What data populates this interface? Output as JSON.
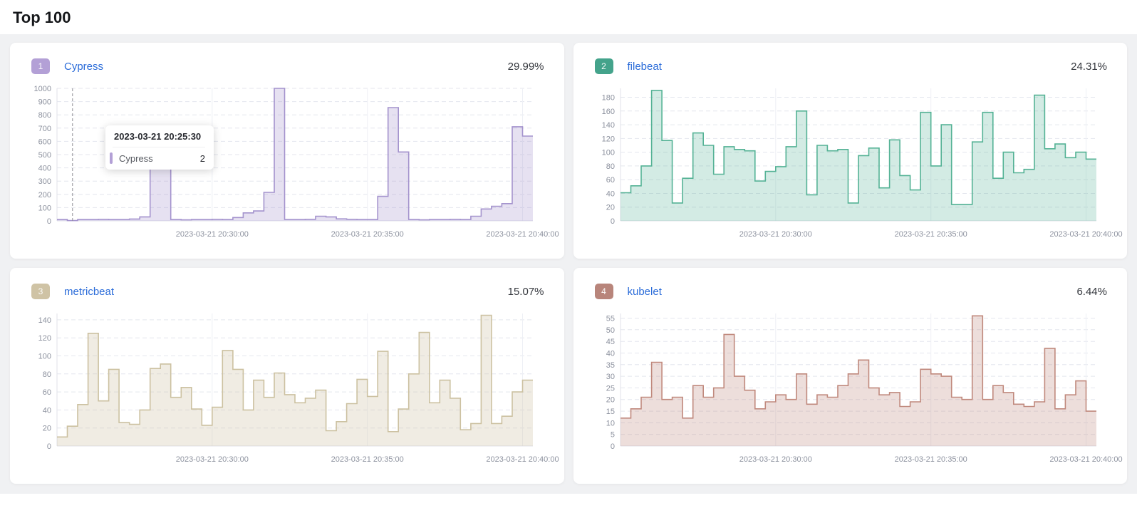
{
  "page": {
    "title": "Top 100"
  },
  "x_axis": [
    "2023-03-21 20:30:00",
    "2023-03-21 20:35:00",
    "2023-03-21 20:40:00"
  ],
  "chart_data": [
    {
      "type": "area",
      "rank": "1",
      "name": "Cypress",
      "percent": "29.99%",
      "colors": {
        "badge": "#b3a0d6",
        "line": "#a493cd",
        "fill": "rgba(164,147,205,0.28)"
      },
      "ylim": [
        0,
        1000
      ],
      "yticks": [
        0,
        100,
        200,
        300,
        400,
        500,
        600,
        700,
        800,
        900,
        1000
      ],
      "xticks": [
        "2023-03-21 20:30:00",
        "2023-03-21 20:35:00",
        "2023-03-21 20:40:00"
      ],
      "values": [
        10,
        2,
        10,
        10,
        12,
        10,
        10,
        14,
        30,
        490,
        600,
        10,
        8,
        10,
        10,
        12,
        10,
        25,
        60,
        75,
        215,
        1000,
        10,
        10,
        12,
        35,
        30,
        15,
        12,
        10,
        10,
        185,
        855,
        520,
        10,
        8,
        10,
        10,
        12,
        10,
        35,
        90,
        110,
        130,
        710,
        640
      ],
      "tooltip": {
        "title": "2023-03-21 20:25:30",
        "series": "Cypress",
        "value": "2"
      },
      "cursor_frac": 0.0326
    },
    {
      "type": "area",
      "rank": "2",
      "name": "filebeat",
      "percent": "24.31%",
      "colors": {
        "badge": "#44a38b",
        "line": "#54b295",
        "fill": "rgba(84,178,149,0.26)"
      },
      "ylim": [
        0,
        193
      ],
      "yticks": [
        0,
        20,
        40,
        60,
        80,
        100,
        120,
        140,
        160,
        180
      ],
      "xticks": [
        "2023-03-21 20:30:00",
        "2023-03-21 20:35:00",
        "2023-03-21 20:40:00"
      ],
      "values": [
        41,
        51,
        80,
        190,
        117,
        26,
        62,
        128,
        110,
        68,
        108,
        104,
        102,
        58,
        72,
        79,
        108,
        160,
        38,
        110,
        102,
        104,
        26,
        95,
        106,
        48,
        118,
        66,
        45,
        158,
        80,
        140,
        24,
        24,
        115,
        158,
        62,
        100,
        70,
        75,
        183,
        105,
        112,
        92,
        100,
        90
      ]
    },
    {
      "type": "area",
      "rank": "3",
      "name": "metricbeat",
      "percent": "15.07%",
      "colors": {
        "badge": "#cfc3a5",
        "line": "#ccc1a1",
        "fill": "rgba(204,193,161,0.30)"
      },
      "ylim": [
        0,
        147
      ],
      "yticks": [
        0,
        20,
        40,
        60,
        80,
        100,
        120,
        140
      ],
      "xticks": [
        "2023-03-21 20:30:00",
        "2023-03-21 20:35:00",
        "2023-03-21 20:40:00"
      ],
      "values": [
        10,
        22,
        46,
        125,
        50,
        85,
        26,
        24,
        40,
        86,
        91,
        54,
        65,
        41,
        23,
        43,
        106,
        85,
        40,
        73,
        54,
        81,
        57,
        48,
        53,
        62,
        17,
        27,
        47,
        74,
        55,
        105,
        16,
        41,
        80,
        126,
        48,
        73,
        53,
        18,
        25,
        145,
        25,
        33,
        60,
        73
      ]
    },
    {
      "type": "area",
      "rank": "4",
      "name": "kubelet",
      "percent": "6.44%",
      "colors": {
        "badge": "#b8857b",
        "line": "#c0897d",
        "fill": "rgba(192,137,125,0.28)"
      },
      "ylim": [
        0,
        57
      ],
      "yticks": [
        0,
        5,
        10,
        15,
        20,
        25,
        30,
        35,
        40,
        45,
        50,
        55
      ],
      "xticks": [
        "2023-03-21 20:30:00",
        "2023-03-21 20:35:00",
        "2023-03-21 20:40:00"
      ],
      "values": [
        12,
        16,
        21,
        36,
        20,
        21,
        12,
        26,
        21,
        25,
        48,
        30,
        24,
        16,
        19,
        22,
        20,
        31,
        18,
        22,
        21,
        26,
        31,
        37,
        25,
        22,
        23,
        17,
        19,
        33,
        31,
        30,
        21,
        20,
        56,
        20,
        26,
        23,
        18,
        17,
        19,
        42,
        16,
        22,
        28,
        15
      ]
    }
  ]
}
